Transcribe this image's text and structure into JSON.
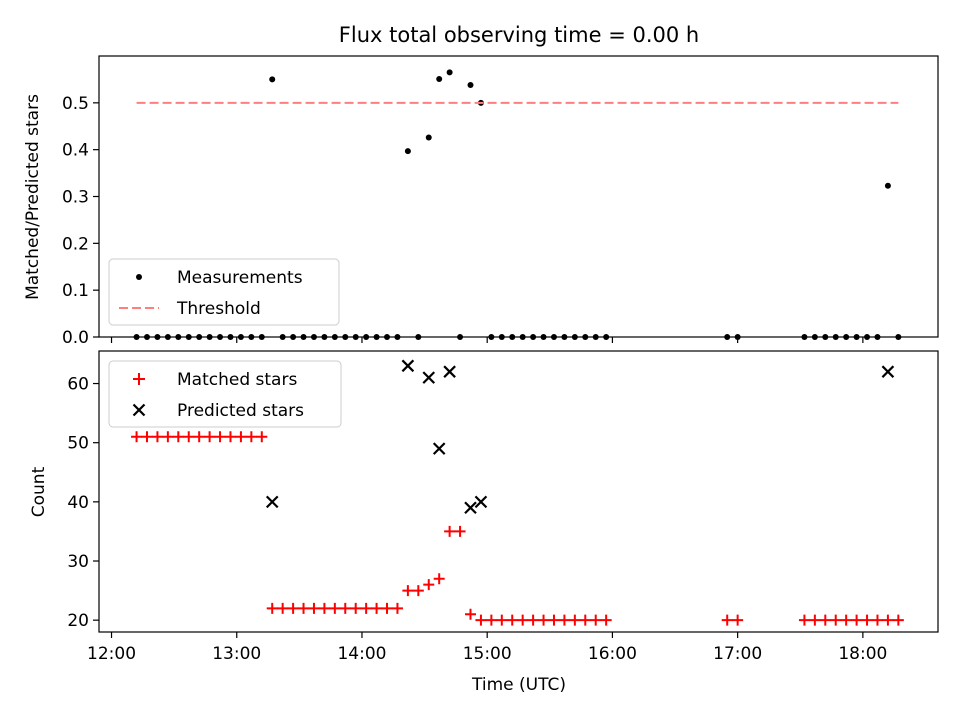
{
  "chart_data": [
    {
      "type": "scatter",
      "title": "Flux total observing time = 0.00 h",
      "xlabel": "",
      "ylabel": "Matched/Predicted stars",
      "xlim_hours": [
        11.9,
        18.6
      ],
      "ylim": [
        0.0,
        0.6
      ],
      "yticks": [
        0.0,
        0.1,
        0.2,
        0.3,
        0.4,
        0.5
      ],
      "ytick_labels": [
        "0.0",
        "0.1",
        "0.2",
        "0.3",
        "0.4",
        "0.5"
      ],
      "show_x_tick_labels": false,
      "legend_position": "lower-left",
      "series": [
        {
          "name": "Measurements",
          "kind": "points",
          "color": "#000000",
          "points": [
            {
              "x": "12:12",
              "y": 0.0
            },
            {
              "x": "12:17",
              "y": 0.0
            },
            {
              "x": "12:22",
              "y": 0.0
            },
            {
              "x": "12:27",
              "y": 0.0
            },
            {
              "x": "12:32",
              "y": 0.0
            },
            {
              "x": "12:37",
              "y": 0.0
            },
            {
              "x": "12:42",
              "y": 0.0
            },
            {
              "x": "12:47",
              "y": 0.0
            },
            {
              "x": "12:52",
              "y": 0.0
            },
            {
              "x": "12:57",
              "y": 0.0
            },
            {
              "x": "13:02",
              "y": 0.0
            },
            {
              "x": "13:07",
              "y": 0.0
            },
            {
              "x": "13:12",
              "y": 0.0
            },
            {
              "x": "13:17",
              "y": 0.55
            },
            {
              "x": "13:22",
              "y": 0.0
            },
            {
              "x": "13:27",
              "y": 0.0
            },
            {
              "x": "13:32",
              "y": 0.0
            },
            {
              "x": "13:37",
              "y": 0.0
            },
            {
              "x": "13:42",
              "y": 0.0
            },
            {
              "x": "13:47",
              "y": 0.0
            },
            {
              "x": "13:52",
              "y": 0.0
            },
            {
              "x": "13:57",
              "y": 0.0
            },
            {
              "x": "14:02",
              "y": 0.0
            },
            {
              "x": "14:07",
              "y": 0.0
            },
            {
              "x": "14:12",
              "y": 0.0
            },
            {
              "x": "14:17",
              "y": 0.0
            },
            {
              "x": "14:22",
              "y": 0.397
            },
            {
              "x": "14:27",
              "y": 0.0
            },
            {
              "x": "14:32",
              "y": 0.426
            },
            {
              "x": "14:37",
              "y": 0.551
            },
            {
              "x": "14:42",
              "y": 0.565
            },
            {
              "x": "14:47",
              "y": 0.0
            },
            {
              "x": "14:52",
              "y": 0.538
            },
            {
              "x": "14:57",
              "y": 0.5
            },
            {
              "x": "15:02",
              "y": 0.0
            },
            {
              "x": "15:07",
              "y": 0.0
            },
            {
              "x": "15:12",
              "y": 0.0
            },
            {
              "x": "15:17",
              "y": 0.0
            },
            {
              "x": "15:22",
              "y": 0.0
            },
            {
              "x": "15:27",
              "y": 0.0
            },
            {
              "x": "15:32",
              "y": 0.0
            },
            {
              "x": "15:37",
              "y": 0.0
            },
            {
              "x": "15:42",
              "y": 0.0
            },
            {
              "x": "15:47",
              "y": 0.0
            },
            {
              "x": "15:52",
              "y": 0.0
            },
            {
              "x": "15:57",
              "y": 0.0
            },
            {
              "x": "16:55",
              "y": 0.0
            },
            {
              "x": "17:00",
              "y": 0.0
            },
            {
              "x": "17:32",
              "y": 0.0
            },
            {
              "x": "17:37",
              "y": 0.0
            },
            {
              "x": "17:42",
              "y": 0.0
            },
            {
              "x": "17:47",
              "y": 0.0
            },
            {
              "x": "17:52",
              "y": 0.0
            },
            {
              "x": "17:57",
              "y": 0.0
            },
            {
              "x": "18:02",
              "y": 0.0
            },
            {
              "x": "18:07",
              "y": 0.0
            },
            {
              "x": "18:12",
              "y": 0.323
            },
            {
              "x": "18:17",
              "y": 0.0
            }
          ]
        },
        {
          "name": "Threshold",
          "kind": "dashed-line",
          "color": "#ff7f7f",
          "x_start": "12:12",
          "x_end": "18:17",
          "y": 0.5
        }
      ]
    },
    {
      "type": "scatter",
      "title": "",
      "xlabel": "Time (UTC)",
      "ylabel": "Count",
      "xlim_hours": [
        11.9,
        18.6
      ],
      "ylim": [
        18,
        65.5
      ],
      "yticks": [
        20,
        30,
        40,
        50,
        60
      ],
      "ytick_labels": [
        "20",
        "30",
        "40",
        "50",
        "60"
      ],
      "xticks_hours": [
        12,
        13,
        14,
        15,
        16,
        17,
        18
      ],
      "xtick_labels": [
        "12:00",
        "13:00",
        "14:00",
        "15:00",
        "16:00",
        "17:00",
        "18:00"
      ],
      "legend_position": "upper-left",
      "series": [
        {
          "name": "Matched stars",
          "marker": "plus",
          "color": "#ff0000",
          "points": [
            {
              "x": "12:12",
              "y": 51
            },
            {
              "x": "12:17",
              "y": 51
            },
            {
              "x": "12:22",
              "y": 51
            },
            {
              "x": "12:27",
              "y": 51
            },
            {
              "x": "12:32",
              "y": 51
            },
            {
              "x": "12:37",
              "y": 51
            },
            {
              "x": "12:42",
              "y": 51
            },
            {
              "x": "12:47",
              "y": 51
            },
            {
              "x": "12:52",
              "y": 51
            },
            {
              "x": "12:57",
              "y": 51
            },
            {
              "x": "13:02",
              "y": 51
            },
            {
              "x": "13:07",
              "y": 51
            },
            {
              "x": "13:12",
              "y": 51
            },
            {
              "x": "13:17",
              "y": 22
            },
            {
              "x": "13:22",
              "y": 22
            },
            {
              "x": "13:27",
              "y": 22
            },
            {
              "x": "13:32",
              "y": 22
            },
            {
              "x": "13:37",
              "y": 22
            },
            {
              "x": "13:42",
              "y": 22
            },
            {
              "x": "13:47",
              "y": 22
            },
            {
              "x": "13:52",
              "y": 22
            },
            {
              "x": "13:57",
              "y": 22
            },
            {
              "x": "14:02",
              "y": 22
            },
            {
              "x": "14:07",
              "y": 22
            },
            {
              "x": "14:12",
              "y": 22
            },
            {
              "x": "14:17",
              "y": 22
            },
            {
              "x": "14:22",
              "y": 25
            },
            {
              "x": "14:27",
              "y": 25
            },
            {
              "x": "14:32",
              "y": 26
            },
            {
              "x": "14:37",
              "y": 27
            },
            {
              "x": "14:42",
              "y": 35
            },
            {
              "x": "14:47",
              "y": 35
            },
            {
              "x": "14:52",
              "y": 21
            },
            {
              "x": "14:57",
              "y": 20
            },
            {
              "x": "15:02",
              "y": 20
            },
            {
              "x": "15:07",
              "y": 20
            },
            {
              "x": "15:12",
              "y": 20
            },
            {
              "x": "15:17",
              "y": 20
            },
            {
              "x": "15:22",
              "y": 20
            },
            {
              "x": "15:27",
              "y": 20
            },
            {
              "x": "15:32",
              "y": 20
            },
            {
              "x": "15:37",
              "y": 20
            },
            {
              "x": "15:42",
              "y": 20
            },
            {
              "x": "15:47",
              "y": 20
            },
            {
              "x": "15:52",
              "y": 20
            },
            {
              "x": "15:57",
              "y": 20
            },
            {
              "x": "16:55",
              "y": 20
            },
            {
              "x": "17:00",
              "y": 20
            },
            {
              "x": "17:32",
              "y": 20
            },
            {
              "x": "17:37",
              "y": 20
            },
            {
              "x": "17:42",
              "y": 20
            },
            {
              "x": "17:47",
              "y": 20
            },
            {
              "x": "17:52",
              "y": 20
            },
            {
              "x": "17:57",
              "y": 20
            },
            {
              "x": "18:02",
              "y": 20
            },
            {
              "x": "18:07",
              "y": 20
            },
            {
              "x": "18:12",
              "y": 20
            },
            {
              "x": "18:17",
              "y": 20
            }
          ]
        },
        {
          "name": "Predicted stars",
          "marker": "x",
          "color": "#000000",
          "points": [
            {
              "x": "13:17",
              "y": 40
            },
            {
              "x": "14:22",
              "y": 63
            },
            {
              "x": "14:32",
              "y": 61
            },
            {
              "x": "14:37",
              "y": 49
            },
            {
              "x": "14:42",
              "y": 62
            },
            {
              "x": "14:52",
              "y": 39
            },
            {
              "x": "14:57",
              "y": 40
            },
            {
              "x": "18:12",
              "y": 62
            }
          ]
        }
      ]
    }
  ]
}
